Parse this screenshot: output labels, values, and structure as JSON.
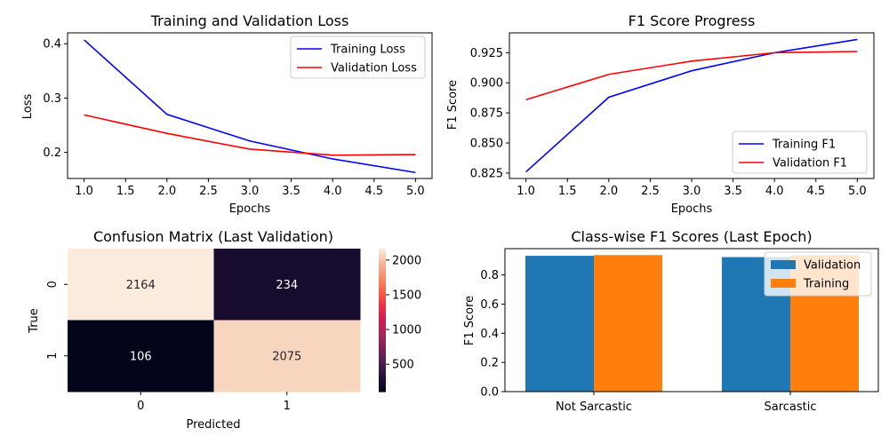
{
  "chart_data": [
    {
      "id": "loss",
      "type": "line",
      "title": "Training and Validation Loss",
      "xlabel": "Epochs",
      "ylabel": "Loss",
      "x": [
        1,
        2,
        3,
        4,
        5
      ],
      "xlim": [
        0.8,
        5.2
      ],
      "ylim": [
        0.152,
        0.42
      ],
      "xticks": [
        1.0,
        1.5,
        2.0,
        2.5,
        3.0,
        3.5,
        4.0,
        4.5,
        5.0
      ],
      "yticks": [
        0.2,
        0.3,
        0.4
      ],
      "legend": "top-right",
      "grid": false,
      "series": [
        {
          "name": "Training Loss",
          "color": "#0000ff",
          "values": [
            0.407,
            0.27,
            0.221,
            0.188,
            0.163
          ]
        },
        {
          "name": "Validation Loss",
          "color": "#ff0000",
          "values": [
            0.269,
            0.235,
            0.206,
            0.195,
            0.196
          ]
        }
      ]
    },
    {
      "id": "f1",
      "type": "line",
      "title": "F1 Score Progress",
      "xlabel": "Epochs",
      "ylabel": "F1 Score",
      "x": [
        1,
        2,
        3,
        4,
        5
      ],
      "xlim": [
        0.8,
        5.2
      ],
      "ylim": [
        0.8205,
        0.9415
      ],
      "xticks": [
        1.0,
        1.5,
        2.0,
        2.5,
        3.0,
        3.5,
        4.0,
        4.5,
        5.0
      ],
      "yticks": [
        0.825,
        0.85,
        0.875,
        0.9,
        0.925
      ],
      "yticklabels": [
        "0.825",
        "0.850",
        "0.875",
        "0.900",
        "0.925"
      ],
      "legend": "bottom-right",
      "grid": false,
      "series": [
        {
          "name": "Training F1",
          "color": "#0000ff",
          "values": [
            0.826,
            0.888,
            0.91,
            0.925,
            0.936
          ]
        },
        {
          "name": "Validation F1",
          "color": "#ff0000",
          "values": [
            0.886,
            0.907,
            0.918,
            0.925,
            0.926
          ]
        }
      ]
    },
    {
      "id": "cm",
      "type": "heatmap",
      "title": "Confusion Matrix (Last Validation)",
      "xlabel": "Predicted",
      "ylabel": "True",
      "xticklabels": [
        "0",
        "1"
      ],
      "yticklabels": [
        "0",
        "1"
      ],
      "values": [
        [
          2164,
          234
        ],
        [
          106,
          2075
        ]
      ],
      "colorbar": {
        "min": 106,
        "max": 2164,
        "ticks": [
          500,
          1000,
          1500,
          2000
        ],
        "colormap": "rocket"
      }
    },
    {
      "id": "classf1",
      "type": "bar",
      "title": "Class-wise F1 Scores (Last Epoch)",
      "xlabel": "",
      "ylabel": "F1 Score",
      "categories": [
        "Not Sarcastic",
        "Sarcastic"
      ],
      "ylim": [
        0,
        0.98
      ],
      "yticks": [
        0.0,
        0.2,
        0.4,
        0.6,
        0.8
      ],
      "legend": "top-right",
      "series": [
        {
          "name": "Validation",
          "color": "#1f77b4",
          "values": [
            0.931,
            0.922
          ]
        },
        {
          "name": "Training",
          "color": "#ff7f0e",
          "values": [
            0.936,
            0.935
          ]
        }
      ]
    }
  ]
}
